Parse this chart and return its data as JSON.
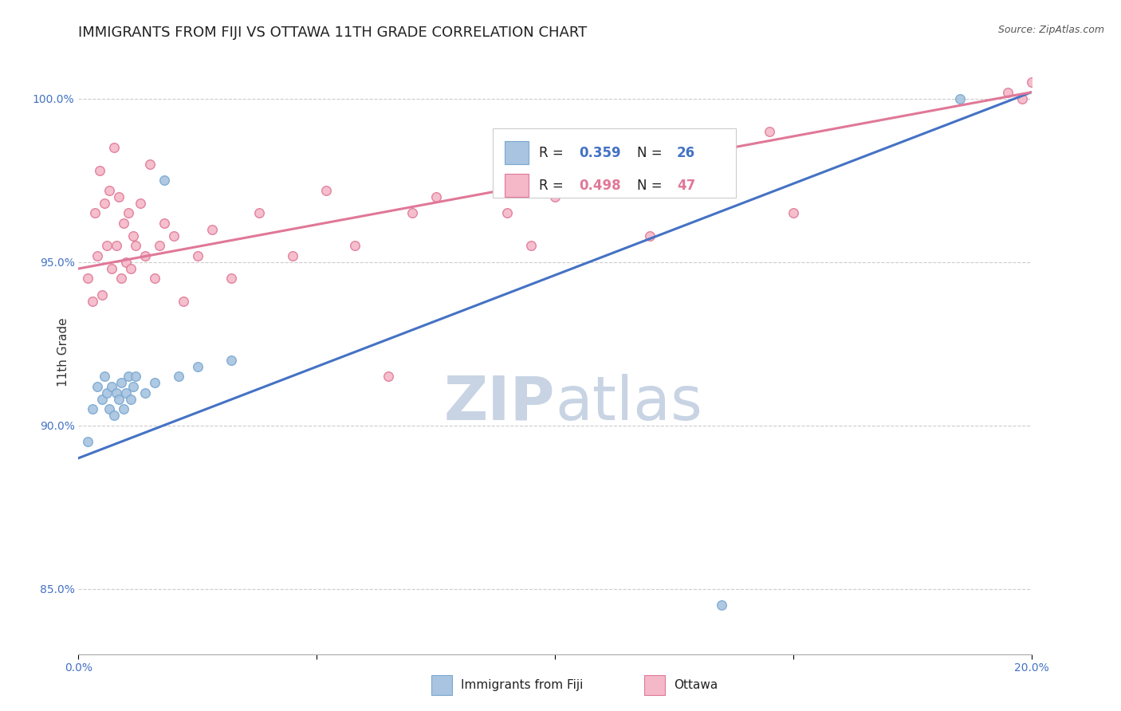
{
  "title": "IMMIGRANTS FROM FIJI VS OTTAWA 11TH GRADE CORRELATION CHART",
  "source": "Source: ZipAtlas.com",
  "ylabel_label": "11th Grade",
  "xlim": [
    0.0,
    20.0
  ],
  "ylim": [
    83.0,
    101.5
  ],
  "xticks": [
    0.0,
    5.0,
    10.0,
    15.0,
    20.0
  ],
  "xtick_labels": [
    "0.0%",
    "",
    "",
    "",
    "20.0%"
  ],
  "ytick_labels": [
    "85.0%",
    "90.0%",
    "95.0%",
    "100.0%"
  ],
  "ytick_values": [
    85.0,
    90.0,
    95.0,
    100.0
  ],
  "fiji_color": "#a8c4e0",
  "fiji_edge_color": "#7aa8d0",
  "fiji_line_color": "#4472c4",
  "ottawa_color": "#f4b8c8",
  "ottawa_edge_color": "#e07898",
  "ottawa_line_color": "#e07898",
  "fiji_scatter_x": [
    0.2,
    0.3,
    0.4,
    0.5,
    0.55,
    0.6,
    0.65,
    0.7,
    0.75,
    0.8,
    0.85,
    0.9,
    0.95,
    1.0,
    1.05,
    1.1,
    1.15,
    1.2,
    1.4,
    1.6,
    1.8,
    2.1,
    2.5,
    3.2,
    13.5,
    18.5
  ],
  "fiji_scatter_y": [
    89.5,
    90.5,
    91.2,
    90.8,
    91.5,
    91.0,
    90.5,
    91.2,
    90.3,
    91.0,
    90.8,
    91.3,
    90.5,
    91.0,
    91.5,
    90.8,
    91.2,
    91.5,
    91.0,
    91.3,
    97.5,
    91.5,
    91.8,
    92.0,
    84.5,
    100.0
  ],
  "ottawa_scatter_x": [
    0.2,
    0.3,
    0.35,
    0.4,
    0.45,
    0.5,
    0.55,
    0.6,
    0.65,
    0.7,
    0.75,
    0.8,
    0.85,
    0.9,
    0.95,
    1.0,
    1.05,
    1.1,
    1.15,
    1.2,
    1.3,
    1.4,
    1.5,
    1.6,
    1.7,
    1.8,
    2.0,
    2.2,
    2.5,
    2.8,
    3.2,
    3.8,
    4.5,
    5.2,
    5.8,
    6.5,
    7.0,
    7.5,
    9.0,
    9.5,
    10.0,
    12.0,
    14.5,
    15.0,
    19.5,
    19.8,
    20.0
  ],
  "ottawa_scatter_y": [
    94.5,
    93.8,
    96.5,
    95.2,
    97.8,
    94.0,
    96.8,
    95.5,
    97.2,
    94.8,
    98.5,
    95.5,
    97.0,
    94.5,
    96.2,
    95.0,
    96.5,
    94.8,
    95.8,
    95.5,
    96.8,
    95.2,
    98.0,
    94.5,
    95.5,
    96.2,
    95.8,
    93.8,
    95.2,
    96.0,
    94.5,
    96.5,
    95.2,
    97.2,
    95.5,
    91.5,
    96.5,
    97.0,
    96.5,
    95.5,
    97.0,
    95.8,
    99.0,
    96.5,
    100.2,
    100.0,
    100.5
  ],
  "fiji_line_x": [
    0.0,
    20.0
  ],
  "fiji_line_y": [
    89.0,
    100.2
  ],
  "ottawa_line_x": [
    0.0,
    20.0
  ],
  "ottawa_line_y": [
    94.8,
    100.2
  ],
  "background_color": "#ffffff",
  "grid_color": "#cccccc",
  "title_fontsize": 13,
  "axis_label_fontsize": 11,
  "tick_fontsize": 10,
  "legend_fontsize": 12,
  "marker_size": 70,
  "watermark_zip": "ZIP",
  "watermark_atlas": "atlas",
  "watermark_color_zip": "#c8d4e4",
  "watermark_color_atlas": "#c8d4e4",
  "watermark_fontsize": 55
}
